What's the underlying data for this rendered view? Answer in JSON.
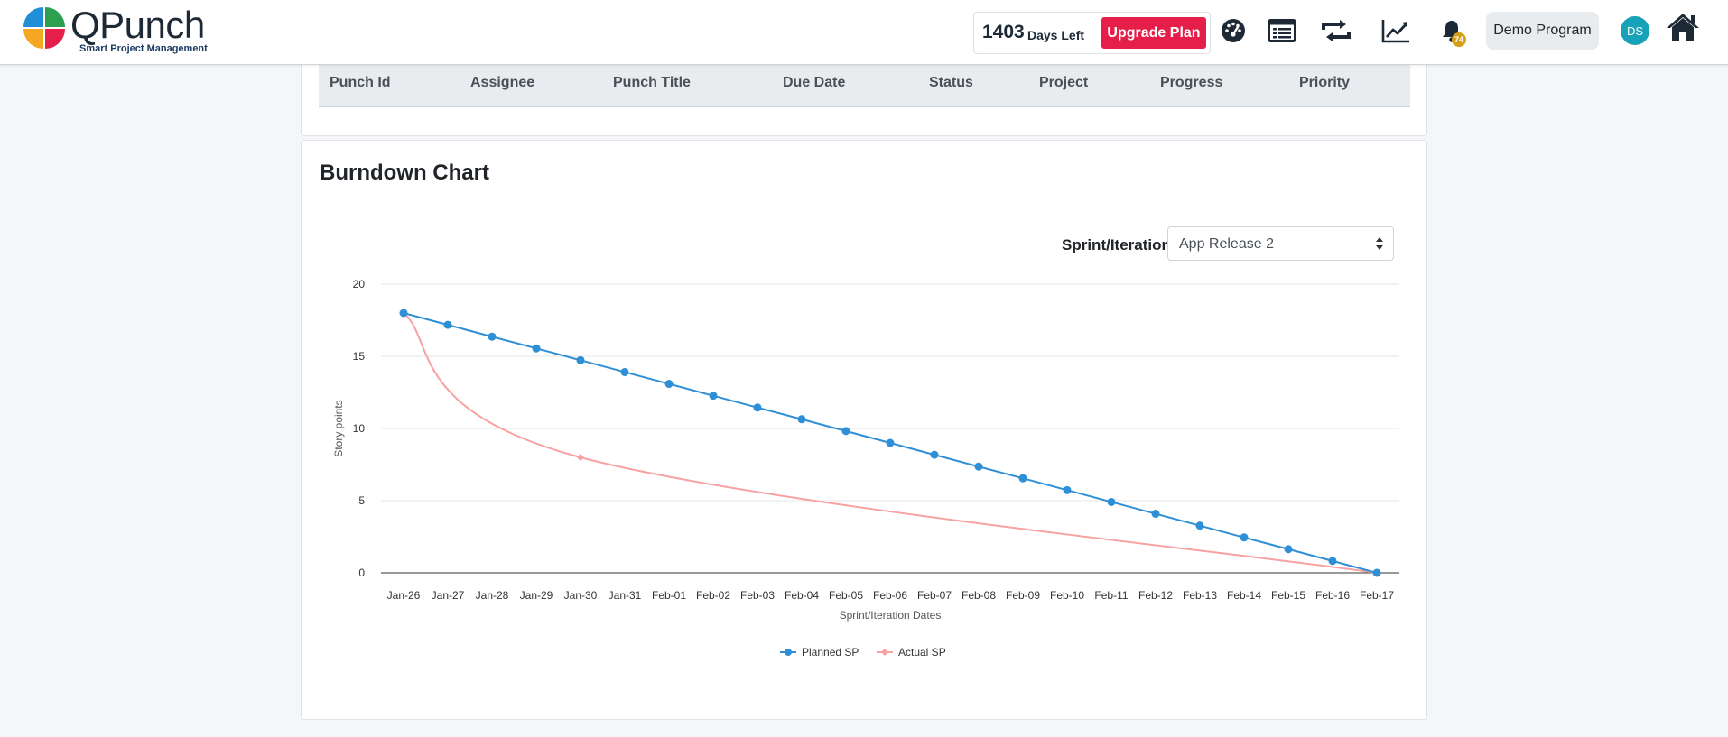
{
  "header": {
    "logo_name": "QPunch",
    "logo_tagline": "Smart Project Management",
    "days_left_number": "1403",
    "days_left_label": "Days Left",
    "upgrade_label": "Upgrade Plan",
    "notification_count": "74",
    "program_label": "Demo Program",
    "avatar_initials": "DS",
    "icons": [
      "dashboard-icon",
      "list-icon",
      "sync-icon",
      "chart-line-icon",
      "bell-icon",
      "home-icon"
    ]
  },
  "punch_table": {
    "columns": [
      "Punch Id",
      "Assignee",
      "Punch Title",
      "Due Date",
      "Status",
      "Project",
      "Progress",
      "Priority"
    ]
  },
  "burndown": {
    "title": "Burndown Chart",
    "sprint_label": "Sprint/Iteration",
    "sprint_value": "App Release 2"
  },
  "colors": {
    "accent": "#e51e4a",
    "planned": "#2f8fd6",
    "actual": "#f7a1a1",
    "avatar": "#17a2b8"
  },
  "chart_data": {
    "type": "line",
    "xlabel": "Sprint/Iteration Dates",
    "ylabel": "Story points",
    "ylim": [
      0,
      20
    ],
    "yticks": [
      0,
      5,
      10,
      15,
      20
    ],
    "grid": true,
    "legend_position": "bottom",
    "categories": [
      "Jan-26",
      "Jan-27",
      "Jan-28",
      "Jan-29",
      "Jan-30",
      "Jan-31",
      "Feb-01",
      "Feb-02",
      "Feb-03",
      "Feb-04",
      "Feb-05",
      "Feb-06",
      "Feb-07",
      "Feb-08",
      "Feb-09",
      "Feb-10",
      "Feb-11",
      "Feb-12",
      "Feb-13",
      "Feb-14",
      "Feb-15",
      "Feb-16",
      "Feb-17"
    ],
    "series": [
      {
        "name": "Planned SP",
        "values": [
          18,
          17.18,
          16.36,
          15.55,
          14.73,
          13.91,
          13.09,
          12.27,
          11.45,
          10.64,
          9.82,
          9.0,
          8.18,
          7.36,
          6.55,
          5.73,
          4.91,
          4.09,
          3.27,
          2.45,
          1.64,
          0.82,
          0
        ]
      },
      {
        "name": "Actual SP",
        "points": [
          {
            "x": "Jan-26",
            "y": 18
          },
          {
            "x": "Jan-30",
            "y": 8
          },
          {
            "x": "Feb-17",
            "y": 0
          }
        ]
      }
    ]
  }
}
